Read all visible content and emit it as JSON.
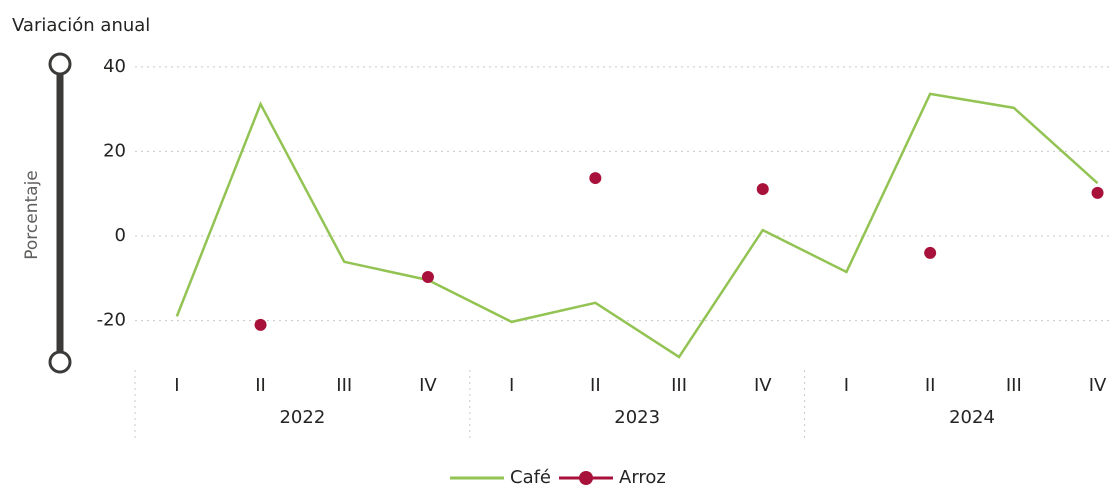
{
  "chart_data": {
    "type": "line",
    "title": "Variación anual",
    "y_label": "Porcentaje",
    "categories": [
      "I",
      "II",
      "III",
      "IV",
      "I",
      "II",
      "III",
      "IV",
      "I",
      "II",
      "III",
      "IV"
    ],
    "category_groups": [
      "2022",
      "2023",
      "2024"
    ],
    "series": [
      {
        "name": "Café",
        "color": "#92c353",
        "style": "line",
        "values": [
          -19,
          31.2,
          -6.1,
          -10.4,
          -20.3,
          -15.8,
          -28.6,
          1.4,
          -8.5,
          33.6,
          30.3,
          12.5
        ]
      },
      {
        "name": "Arroz",
        "color": "#a8123a",
        "style": "markers",
        "values": [
          null,
          -21,
          null,
          -9.7,
          null,
          13.7,
          null,
          11.1,
          null,
          -4,
          null,
          10.2
        ]
      }
    ],
    "ylim": [
      -30,
      41
    ],
    "yticks": [
      40,
      20,
      0,
      -20
    ],
    "grid": true,
    "legend": "bottom"
  }
}
